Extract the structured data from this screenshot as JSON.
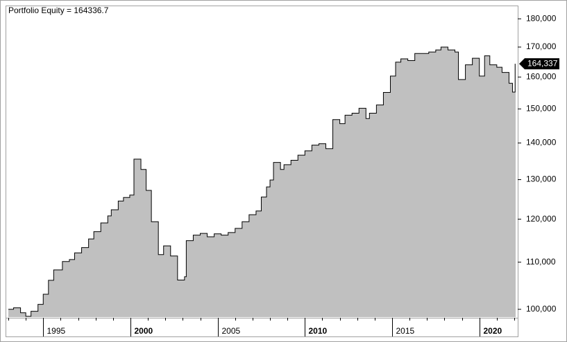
{
  "chart_data": {
    "type": "step-area",
    "title": "Portfolio Equity = 164336.7",
    "x": [
      1993.0,
      1993.3,
      1993.7,
      1994.0,
      1994.3,
      1994.7,
      1995.0,
      1995.3,
      1995.6,
      1996.1,
      1996.5,
      1996.8,
      1997.2,
      1997.6,
      1997.9,
      1998.3,
      1998.7,
      1998.9,
      1999.3,
      1999.6,
      1999.96,
      2000.2,
      2000.6,
      2000.9,
      2001.2,
      2001.6,
      2001.9,
      2002.3,
      2002.7,
      2003.1,
      2003.2,
      2003.6,
      2004.0,
      2004.4,
      2004.8,
      2005.2,
      2005.6,
      2006.0,
      2006.4,
      2006.8,
      2007.2,
      2007.5,
      2007.8,
      2008.0,
      2008.2,
      2008.6,
      2008.8,
      2009.2,
      2009.6,
      2010.0,
      2010.4,
      2010.8,
      2011.2,
      2011.6,
      2012.0,
      2012.3,
      2012.7,
      2013.1,
      2013.5,
      2013.7,
      2014.1,
      2014.5,
      2014.9,
      2015.2,
      2015.5,
      2015.9,
      2016.3,
      2016.7,
      2017.1,
      2017.5,
      2017.8,
      2018.2,
      2018.6,
      2018.8,
      2019.2,
      2019.6,
      2020.0,
      2020.3,
      2020.6,
      2021.0,
      2021.3,
      2021.7,
      2021.9,
      2022.05
    ],
    "values": [
      100000,
      100300,
      99300,
      98600,
      99600,
      101000,
      103100,
      106050,
      108300,
      110150,
      110600,
      112100,
      113300,
      115300,
      117000,
      119100,
      120800,
      122300,
      124500,
      125400,
      126000,
      135500,
      132700,
      127200,
      119400,
      111700,
      113700,
      111400,
      106100,
      106800,
      114900,
      116200,
      116600,
      115800,
      116500,
      116200,
      116800,
      117800,
      119400,
      121100,
      122000,
      125500,
      128100,
      129900,
      134600,
      132700,
      134000,
      135200,
      136600,
      137800,
      139400,
      139800,
      138400,
      146800,
      145600,
      148100,
      148700,
      150200,
      147100,
      148700,
      151200,
      155100,
      160300,
      164900,
      166000,
      165400,
      167800,
      167800,
      168300,
      169000,
      170000,
      169000,
      168300,
      159200,
      164000,
      166200,
      160300,
      167000,
      164000,
      163200,
      161500,
      158000,
      155200,
      164336.7
    ],
    "last_value_label": "164,337",
    "color": "#c0c0c0",
    "line_color": "#000000",
    "xlim": [
      1993.0,
      2022.2
    ],
    "xticks": [
      1995,
      2000,
      2005,
      2010,
      2015,
      2020
    ],
    "ylim": [
      98300,
      184900
    ],
    "log_scale": true,
    "yticks": [
      {
        "value": 100000,
        "label": "100,000"
      },
      {
        "value": 110000,
        "label": "110,000"
      },
      {
        "value": 120000,
        "label": "120,000"
      },
      {
        "value": 130000,
        "label": "130,000"
      },
      {
        "value": 140000,
        "label": "140,000"
      },
      {
        "value": 150000,
        "label": "150,000"
      },
      {
        "value": 160000,
        "label": "160,000"
      },
      {
        "value": 170000,
        "label": "170,000"
      },
      {
        "value": 180000,
        "label": "180,000"
      }
    ]
  }
}
